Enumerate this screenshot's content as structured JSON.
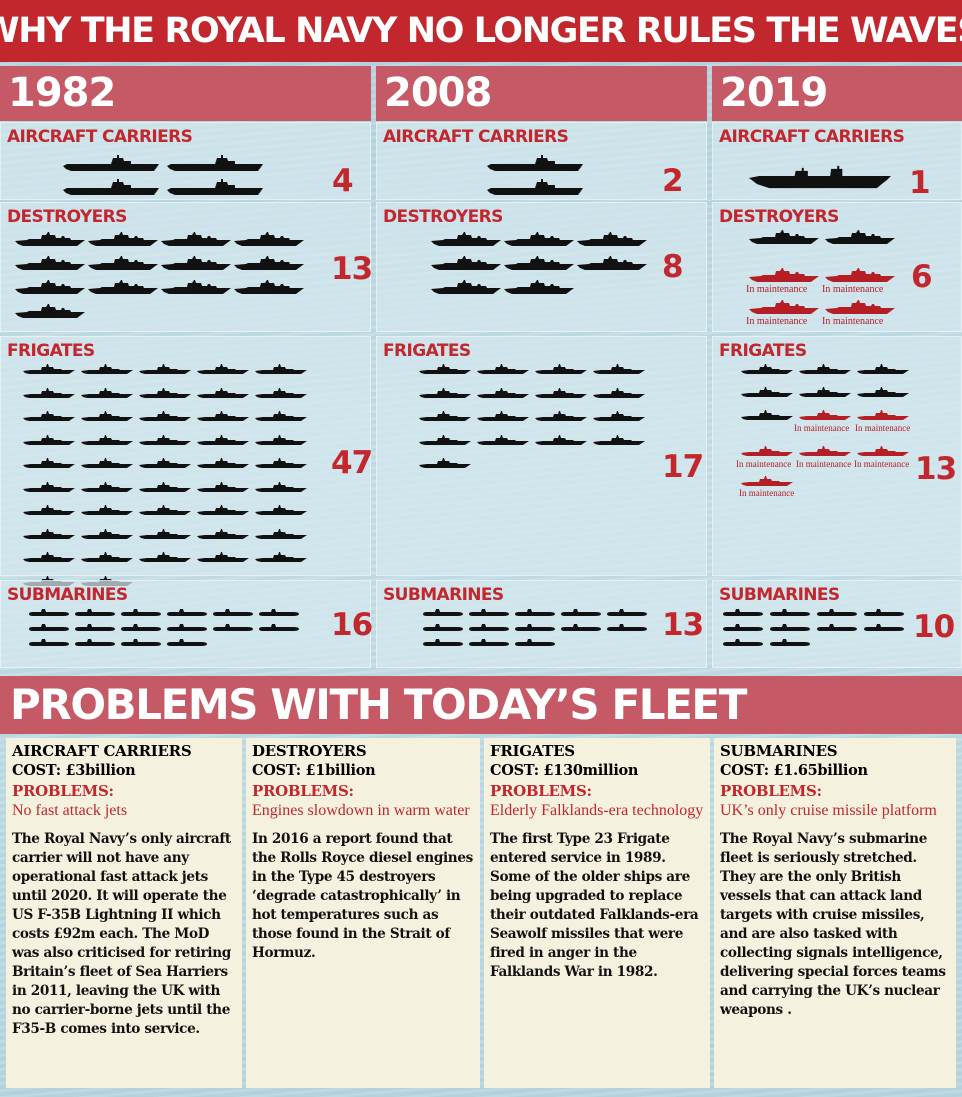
{
  "title": "WHY THE ROYAL NAVY NO LONGER RULES THE WAVES",
  "years": [
    "1982",
    "2008",
    "2019"
  ],
  "categories": {
    "carriers": "AIRCRAFT CARRIERS",
    "destroyers": "DESTROYERS",
    "frigates": "FRIGATES",
    "submarines": "SUBMARINES"
  },
  "fleet": [
    {
      "year": "1982",
      "carriers": "4",
      "destroyers": "13",
      "frigates": "47",
      "submarines": "16"
    },
    {
      "year": "2008",
      "carriers": "2",
      "destroyers": "8",
      "frigates": "17",
      "submarines": "13"
    },
    {
      "year": "2019",
      "carriers": "1",
      "destroyers": "6",
      "frigates": "13",
      "submarines": "10"
    }
  ],
  "maintenance_label": "In maintenance",
  "maintenance_counts": {
    "destroyers_2019": 4,
    "frigates_2019": 7
  },
  "colors": {
    "accent": "#c1272d",
    "ship": "#111111",
    "ship_maintenance": "#b51e24"
  },
  "problems": {
    "heading": "PROBLEMS WITH TODAY’S FLEET",
    "problems_label": "PROBLEMS:",
    "items": [
      {
        "title": "AIRCRAFT CARRIERS",
        "cost": "COST: £3billion",
        "summary": "No fast attack jets",
        "body": "The Royal Navy’s only aircraft carrier will not have any operational fast attack jets until 2020. It will operate the US F-35B Lightning II which costs £92m each. The MoD was also criticised for retiring Britain’s fleet of Sea Harriers in 2011, leaving the UK with no carrier-borne jets until the F35-B comes into service."
      },
      {
        "title": "DESTROYERS",
        "cost": "COST: £1billion",
        "summary": "Engines slowdown in warm water",
        "body": "In 2016 a report found that the Rolls Royce diesel engines in the Type 45 destroyers ‘degrade catastrophically’ in hot temperatures such as those found in the Strait of Hormuz."
      },
      {
        "title": "FRIGATES",
        "cost": "COST: £130million",
        "summary": "Elderly Falklands-era technology",
        "body": "The first Type 23 Frigate entered service in 1989. Some of the older ships are being upgraded to replace their outdated Falklands-era Seawolf missiles that were fired in anger in the Falklands War in 1982."
      },
      {
        "title": "SUBMARINES",
        "cost": "COST: £1.65billion",
        "summary": "UK’s only cruise missile platform",
        "body": "The Royal Navy’s submarine fleet is seriously stretched. They are the only British vessels that can attack land targets with cruise missiles, and are also tasked with collecting signals intelligence, delivering special forces teams and carrying the UK’s nuclear weapons ."
      }
    ]
  }
}
